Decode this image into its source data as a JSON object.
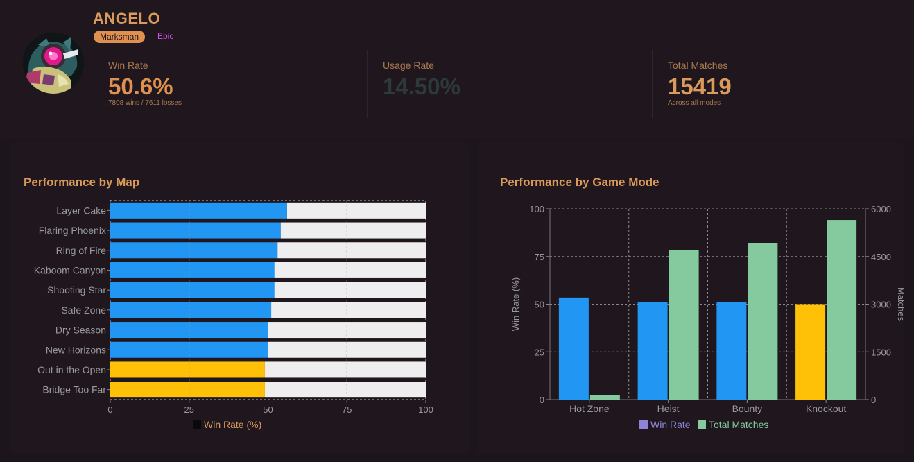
{
  "brawler": {
    "name": "ANGELO",
    "class": "Marksman",
    "rarity": "Epic"
  },
  "stats": {
    "win_rate": {
      "label": "Win Rate",
      "value": "50.6%",
      "sub": "7808 wins / 7611 losses"
    },
    "usage_rate": {
      "label": "Usage Rate",
      "value": "14.50%"
    },
    "total_matches": {
      "label": "Total Matches",
      "value": "15419",
      "sub": "Across all modes"
    }
  },
  "colors": {
    "accent": "#d99a5b",
    "blue": "#2196f3",
    "gold": "#ffc107",
    "green": "#85c99e",
    "usage_value": "#2c3b3a",
    "legend_purple": "#8c85d6"
  },
  "chart_data": [
    {
      "type": "bar",
      "orientation": "horizontal",
      "stacked": true,
      "title": "Performance by Map",
      "categories": [
        "Layer Cake",
        "Flaring Phoenix",
        "Ring of Fire",
        "Kaboom Canyon",
        "Shooting Star",
        "Safe Zone",
        "Dry Season",
        "New Horizons",
        "Out in the Open",
        "Bridge Too Far"
      ],
      "series": [
        {
          "name": "Win Rate (%)",
          "values": [
            56,
            54,
            53,
            52,
            52,
            51,
            50,
            50,
            49,
            49
          ]
        }
      ],
      "remainder_to": 100,
      "xlim": [
        0,
        100
      ],
      "xticks": [
        0,
        25,
        50,
        75,
        100
      ],
      "legend": "Win Rate (%)",
      "legend_position": "bottom"
    },
    {
      "type": "bar",
      "title": "Performance by Game Mode",
      "categories": [
        "Hot Zone",
        "Heist",
        "Bounty",
        "Knockout"
      ],
      "series": [
        {
          "name": "Win Rate",
          "axis": "left",
          "values": [
            53.5,
            51,
            51,
            50
          ]
        },
        {
          "name": "Total Matches",
          "axis": "right",
          "values": [
            150,
            4700,
            4930,
            5650
          ]
        }
      ],
      "ylabel": "Win Rate (%)",
      "ylabel_right": "Matches",
      "ylim": [
        0,
        100
      ],
      "ylim_right": [
        0,
        6000
      ],
      "yticks": [
        0,
        25,
        50,
        75,
        100
      ],
      "yticks_right": [
        0,
        1500,
        3000,
        4500,
        6000
      ],
      "grid": true,
      "legend": [
        "Win Rate",
        "Total Matches"
      ],
      "legend_position": "bottom"
    }
  ]
}
